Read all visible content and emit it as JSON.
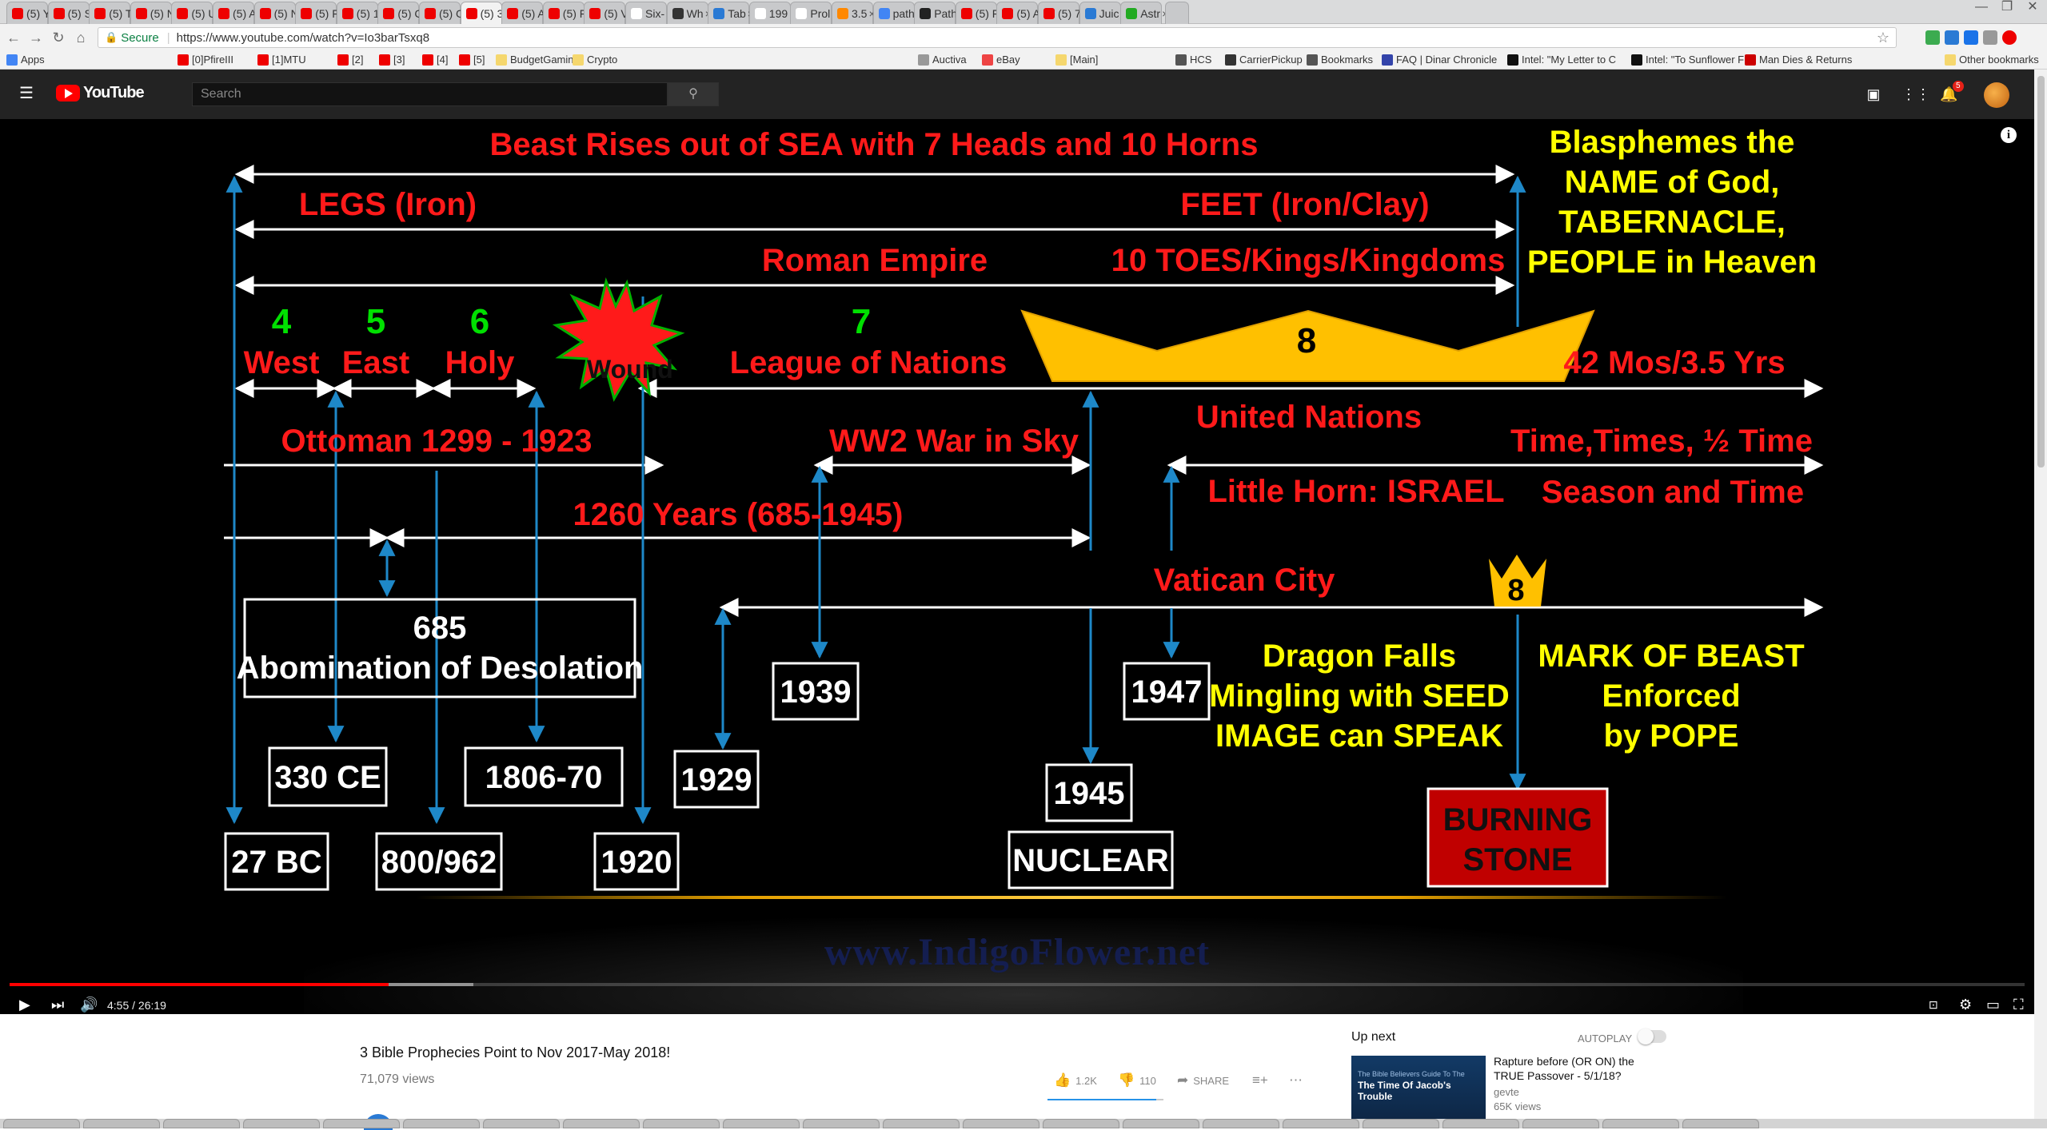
{
  "browser": {
    "tabs": [
      {
        "label": "(5) Y",
        "fav": "#e00"
      },
      {
        "label": "(5) S",
        "fav": "#e00"
      },
      {
        "label": "(5) T",
        "fav": "#e00"
      },
      {
        "label": "(5) N",
        "fav": "#e00"
      },
      {
        "label": "(5) U",
        "fav": "#e00"
      },
      {
        "label": "(5) A",
        "fav": "#e00"
      },
      {
        "label": "(5) N",
        "fav": "#e00"
      },
      {
        "label": "(5) F",
        "fav": "#e00"
      },
      {
        "label": "(5) 1",
        "fav": "#e00"
      },
      {
        "label": "(5) C",
        "fav": "#e00"
      },
      {
        "label": "(5) C",
        "fav": "#e00"
      },
      {
        "label": "(5) 3",
        "fav": "#e00"
      },
      {
        "label": "(5) A",
        "fav": "#e00"
      },
      {
        "label": "(5) F",
        "fav": "#e00"
      },
      {
        "label": "(5) V",
        "fav": "#e00"
      },
      {
        "label": "Six-",
        "fav": "#fff"
      },
      {
        "label": "Wh",
        "fav": "#333"
      },
      {
        "label": "Tab",
        "fav": "#2a7ad4"
      },
      {
        "label": "199",
        "fav": "#fff"
      },
      {
        "label": "Prol",
        "fav": "#fff"
      },
      {
        "label": "3.5",
        "fav": "#f80"
      },
      {
        "label": "path",
        "fav": "#4285f4"
      },
      {
        "label": "Path",
        "fav": "#222"
      },
      {
        "label": "(5) F",
        "fav": "#e00"
      },
      {
        "label": "(5) A",
        "fav": "#e00"
      },
      {
        "label": "(5) 7",
        "fav": "#e00"
      },
      {
        "label": "Juic",
        "fav": "#2a7ad4"
      },
      {
        "label": "Astr",
        "fav": "#2a2"
      }
    ],
    "url": {
      "secure_label": "Secure",
      "address": "https://www.youtube.com/watch?v=Io3barTsxq8"
    },
    "bookmarks": [
      {
        "label": "Apps"
      },
      {
        "label": "[0]PfireIII"
      },
      {
        "label": "[1]MTU"
      },
      {
        "label": "[2]"
      },
      {
        "label": "[3]"
      },
      {
        "label": "[4]"
      },
      {
        "label": "[5]"
      },
      {
        "label": "BudgetGaming"
      },
      {
        "label": "Crypto"
      },
      {
        "label": "Auctiva"
      },
      {
        "label": "eBay"
      },
      {
        "label": "[Main]"
      },
      {
        "label": "HCS"
      },
      {
        "label": "CarrierPickup"
      },
      {
        "label": "Bookmarks"
      },
      {
        "label": "FAQ | Dinar Chronicle"
      },
      {
        "label": "Intel: \"My Letter to C"
      },
      {
        "label": "Intel: \"To Sunflower F"
      },
      {
        "label": "Man Dies & Returns"
      }
    ],
    "other_bookmarks": "Other bookmarks"
  },
  "youtube": {
    "logo_text": "YouTube",
    "search_placeholder": "Search",
    "notification_count": "5"
  },
  "slide": {
    "top_line": "Beast Rises out of SEA with 7 Heads and 10 Horns",
    "legs": "LEGS (Iron)",
    "feet": "FEET (Iron/Clay)",
    "roman_empire": "Roman Empire",
    "toes": "10 TOES/Kings/Kingdoms",
    "blasphemes": [
      "Blasphemes the",
      "NAME of God,",
      "TABERNACLE,",
      "PEOPLE in Heaven"
    ],
    "heads": [
      {
        "num": "4",
        "name": "West"
      },
      {
        "num": "5",
        "name": "East"
      },
      {
        "num": "6",
        "name": "Holy"
      },
      {
        "num": "7",
        "name": "League of Nations"
      }
    ],
    "wound": "Wound",
    "crown_big": "8",
    "crown_small": "8",
    "mos": "42 Mos/3.5 Yrs",
    "ottoman": "Ottoman 1299 - 1923",
    "ww2": "WW2 War in Sky",
    "united_nations": "United Nations",
    "time_times": "Time,Times, ½ Time",
    "little_horn": "Little Horn: ISRAEL",
    "season": "Season and Time",
    "years1260": "1260 Years (685-1945)",
    "vatican": "Vatican City",
    "abomination": [
      "685",
      "Abomination of Desolation"
    ],
    "dragon": [
      "Dragon Falls",
      "Mingling with SEED",
      "IMAGE can SPEAK"
    ],
    "mark": [
      "MARK OF BEAST",
      "Enforced",
      "by POPE"
    ],
    "boxes": {
      "b1939": "1939",
      "b1947": "1947",
      "b330": "330 CE",
      "b1806": "1806-70",
      "b1929": "1929",
      "b1945": "1945",
      "b27bc": "27 BC",
      "b800": "800/962",
      "b1920": "1920",
      "nuclear": "NUCLEAR",
      "burning": [
        "BURNING",
        "STONE"
      ]
    },
    "watermark": "www.IndigoFlower.net",
    "colors": {
      "red": "#ff1a1a",
      "yellow": "#ffff00",
      "green": "#00ff00",
      "blue": "#1e88c8",
      "gold": "#ffc000",
      "burning_bg": "#c00000"
    }
  },
  "player": {
    "time": "4:55 / 26:19",
    "played_fraction": 0.188,
    "buffered_fraction": 0.23
  },
  "video_info": {
    "title": "3 Bible Prophecies Point to Nov 2017-May 2018!",
    "views": "71,079 views",
    "likes": "1.2K",
    "dislikes": "110",
    "share": "SHARE"
  },
  "sidebar": {
    "up_next": "Up next",
    "autoplay": "AUTOPLAY",
    "rec": {
      "thumb_line1": "The Bible Believers Guide To The",
      "thumb_line2": "The Time Of Jacob's Trouble",
      "title": "Rapture before (OR ON) the TRUE Passover - 5/1/18?",
      "channel": "gevte",
      "views": "65K views"
    }
  }
}
